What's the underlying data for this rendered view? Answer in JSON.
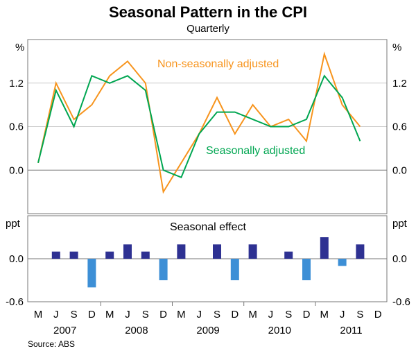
{
  "chart_data": [
    {
      "type": "line",
      "title": "Seasonal Pattern in the CPI",
      "subtitle": "Quarterly",
      "ylabel": "%",
      "ylim": [
        -0.6,
        1.8
      ],
      "yticks": [
        "1.2",
        "0.6",
        "0.0"
      ],
      "grid": true,
      "categories": [
        "M 2007",
        "J 2007",
        "S 2007",
        "D 2007",
        "M 2008",
        "J 2008",
        "S 2008",
        "D 2008",
        "M 2009",
        "J 2009",
        "S 2009",
        "D 2009",
        "M 2010",
        "J 2010",
        "S 2010",
        "D 2010",
        "M 2011",
        "J 2011",
        "S 2011"
      ],
      "series": [
        {
          "name": "Non-seasonally adjusted",
          "color": "#f7941d",
          "values": [
            0.1,
            1.2,
            0.7,
            0.9,
            1.3,
            1.5,
            1.2,
            -0.3,
            0.1,
            0.5,
            1.0,
            0.5,
            0.9,
            0.6,
            0.7,
            0.4,
            1.6,
            0.9,
            0.6
          ]
        },
        {
          "name": "Seasonally adjusted",
          "color": "#00a651",
          "values": [
            0.1,
            1.1,
            0.6,
            1.3,
            1.2,
            1.3,
            1.1,
            0.0,
            -0.1,
            0.5,
            0.8,
            0.8,
            0.7,
            0.6,
            0.6,
            0.7,
            1.3,
            1.0,
            0.4
          ]
        }
      ]
    },
    {
      "type": "bar",
      "title": "Seasonal effect",
      "ylabel": "ppt",
      "ylim": [
        -0.6,
        0.6
      ],
      "yticks": [
        "0.0",
        "-0.6"
      ],
      "positive_color": "#2e3192",
      "negative_color": "#3d8fd6",
      "categories": [
        "M 2007",
        "J 2007",
        "S 2007",
        "D 2007",
        "M 2008",
        "J 2008",
        "S 2008",
        "D 2008",
        "M 2009",
        "J 2009",
        "S 2009",
        "D 2009",
        "M 2010",
        "J 2010",
        "S 2010",
        "D 2010",
        "M 2011",
        "J 2011",
        "S 2011"
      ],
      "values": [
        0,
        0.1,
        0.1,
        -0.4,
        0.1,
        0.2,
        0.1,
        -0.3,
        0.2,
        0,
        0.2,
        -0.3,
        0.2,
        0,
        0.1,
        -0.3,
        0.3,
        -0.1,
        0.2
      ]
    }
  ],
  "xaxis": {
    "quarter_labels": [
      "M",
      "J",
      "S",
      "D",
      "M",
      "J",
      "S",
      "D",
      "M",
      "J",
      "S",
      "D",
      "M",
      "J",
      "S",
      "D",
      "M",
      "J",
      "S",
      "D"
    ],
    "years": [
      "2007",
      "2008",
      "2009",
      "2010",
      "2011"
    ]
  },
  "source": "Source: ABS"
}
